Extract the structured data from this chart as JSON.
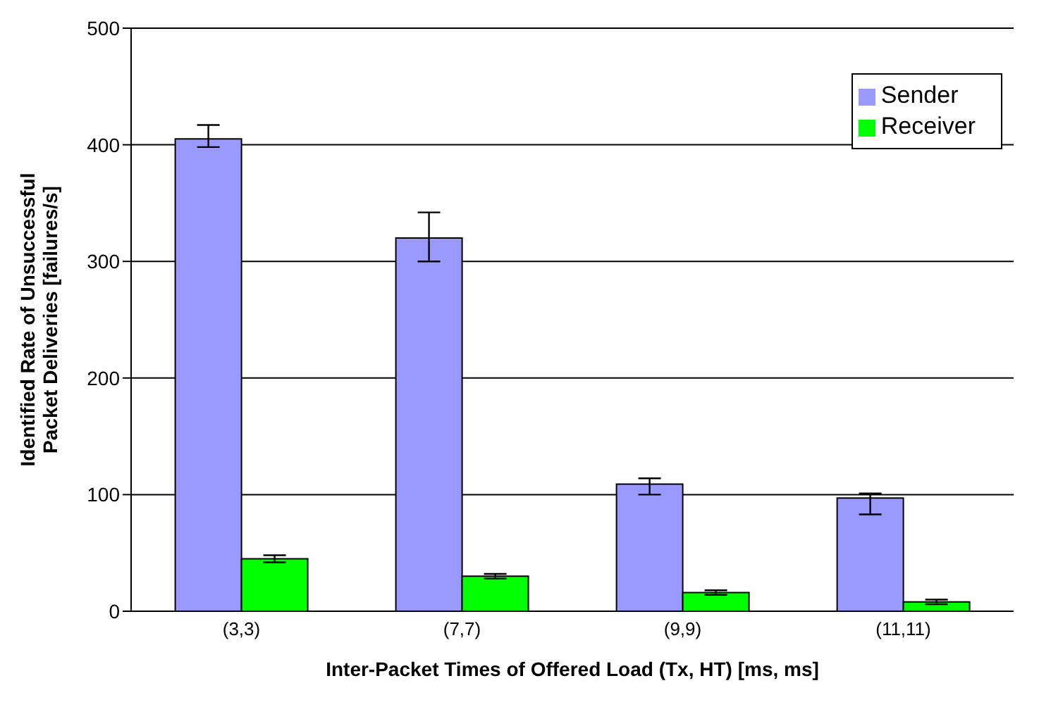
{
  "chart_data": {
    "type": "bar",
    "xlabel": "Inter-Packet Times of Offered Load (Tx, HT) [ms, ms]",
    "ylabel": "Identified Rate of Unsuccessful Packet Deliveries [failures/s]",
    "categories": [
      "(3,3)",
      "(7,7)",
      "(9,9)",
      "(11,11)"
    ],
    "series": [
      {
        "name": "Sender",
        "color": "#9999ff",
        "values": [
          405,
          320,
          109,
          97
        ],
        "errors": [
          [
            398,
            417
          ],
          [
            300,
            342
          ],
          [
            100,
            114
          ],
          [
            83,
            101
          ]
        ]
      },
      {
        "name": "Receiver",
        "color": "#00ff00",
        "values": [
          45,
          30,
          16,
          8
        ],
        "errors": [
          3,
          2,
          2,
          2
        ]
      }
    ],
    "ylim": [
      0,
      500
    ],
    "yticks": [
      0,
      100,
      200,
      300,
      400,
      500
    ],
    "grid": "y",
    "legend": "top right"
  }
}
